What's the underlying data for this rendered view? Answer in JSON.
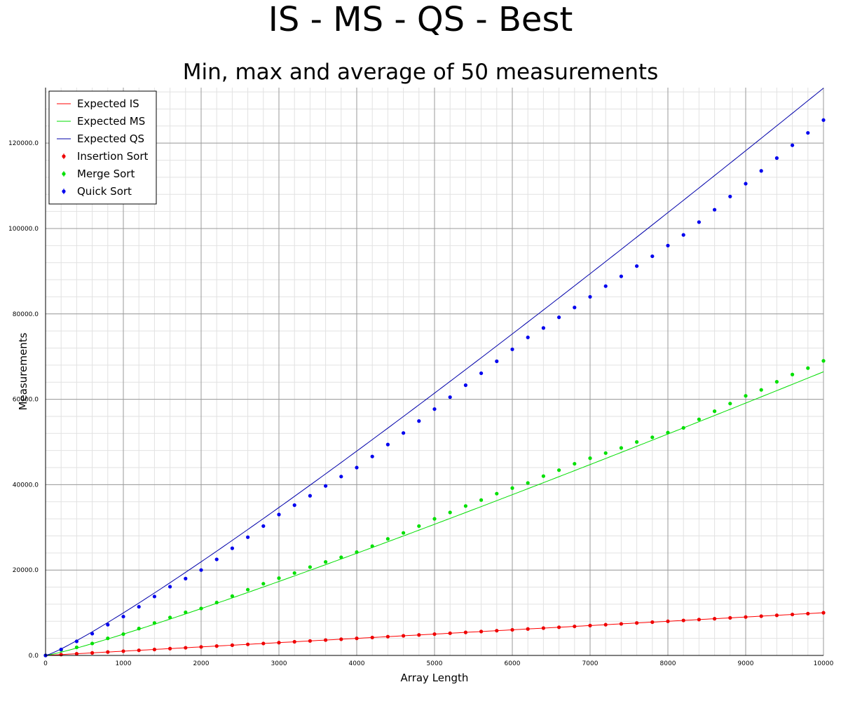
{
  "chart_data": {
    "type": "scatter",
    "title": "IS - MS - QS - Best",
    "subtitle": "Min, max and average of 50 measurements",
    "xlabel": "Array Length",
    "ylabel": "Measurements",
    "xlim": [
      0,
      10000
    ],
    "ylim": [
      0,
      133000
    ],
    "x_ticks": [
      0,
      1000,
      2000,
      3000,
      4000,
      5000,
      6000,
      7000,
      8000,
      9000,
      10000
    ],
    "x_tick_labels": [
      "0",
      "1000",
      "2000",
      "3000",
      "4000",
      "5000",
      "6000",
      "7000",
      "8000",
      "9000",
      "10000"
    ],
    "y_ticks": [
      0,
      20000,
      40000,
      60000,
      80000,
      100000,
      120000
    ],
    "y_tick_labels": [
      "0.0",
      "20000.0",
      "40000.0",
      "60000.0",
      "80000.0",
      "100000.0",
      "120000.0"
    ],
    "grid": true,
    "legend_position": "top-left",
    "x": [
      0,
      200,
      400,
      600,
      800,
      1000,
      1200,
      1400,
      1600,
      1800,
      2000,
      2200,
      2400,
      2600,
      2800,
      3000,
      3200,
      3400,
      3600,
      3800,
      4000,
      4200,
      4400,
      4600,
      4800,
      5000,
      5200,
      5400,
      5600,
      5800,
      6000,
      6200,
      6400,
      6600,
      6800,
      7000,
      7200,
      7400,
      7600,
      7800,
      8000,
      8200,
      8400,
      8600,
      8800,
      9000,
      9200,
      9400,
      9600,
      9800,
      10000
    ],
    "lines": [
      {
        "name": "Expected IS",
        "color": "#ff0000",
        "formula": "n"
      },
      {
        "name": "Expected MS",
        "color": "#00dd00",
        "formula": "n*log2(n)/2"
      },
      {
        "name": "Expected QS",
        "color": "#0000aa",
        "formula": "n*log2(n)"
      }
    ],
    "series": [
      {
        "name": "Insertion Sort",
        "color": "#ee0000",
        "values": [
          0,
          199,
          399,
          599,
          799,
          999,
          1199,
          1399,
          1599,
          1799,
          1999,
          2199,
          2399,
          2599,
          2799,
          2999,
          3199,
          3399,
          3599,
          3799,
          3999,
          4199,
          4399,
          4599,
          4799,
          4999,
          5199,
          5399,
          5599,
          5799,
          5999,
          6199,
          6399,
          6599,
          6799,
          6999,
          7199,
          7399,
          7599,
          7799,
          7999,
          8199,
          8399,
          8599,
          8799,
          8999,
          9199,
          9399,
          9599,
          9799,
          9999
        ]
      },
      {
        "name": "Merge Sort",
        "color": "#00e000",
        "values": [
          0,
          1300,
          1900,
          2800,
          4000,
          5000,
          6300,
          7600,
          8900,
          10100,
          11000,
          12400,
          13900,
          15400,
          16800,
          18100,
          19300,
          20700,
          21900,
          23000,
          24200,
          25600,
          27300,
          28700,
          30300,
          32000,
          33500,
          35000,
          36400,
          37900,
          39200,
          40400,
          42000,
          43400,
          44900,
          46200,
          47400,
          48600,
          50000,
          51100,
          52200,
          53300,
          55300,
          57200,
          59000,
          60800,
          62200,
          64100,
          65800,
          67300,
          69000
        ]
      },
      {
        "name": "Quick Sort",
        "color": "#0000ee",
        "values": [
          0,
          1400,
          3300,
          5100,
          7200,
          9100,
          11400,
          13800,
          16100,
          18000,
          20000,
          22500,
          25100,
          27700,
          30300,
          33000,
          35200,
          37400,
          39700,
          41900,
          44000,
          46600,
          49400,
          52100,
          54900,
          57700,
          60500,
          63300,
          66100,
          68900,
          71700,
          74500,
          76700,
          79200,
          81500,
          84000,
          86500,
          88800,
          91200,
          93500,
          96000,
          98500,
          101500,
          104400,
          107500,
          110500,
          113500,
          116500,
          119500,
          122400,
          125400
        ]
      }
    ]
  }
}
